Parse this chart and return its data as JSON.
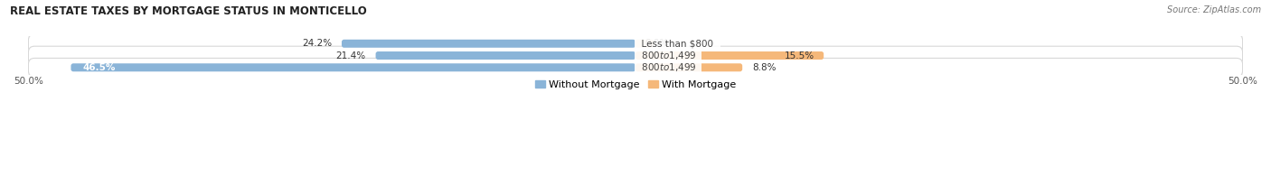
{
  "title": "REAL ESTATE TAXES BY MORTGAGE STATUS IN MONTICELLO",
  "source": "Source: ZipAtlas.com",
  "rows": [
    {
      "label": "Less than $800",
      "without_mortgage": 24.2,
      "with_mortgage": 0.0
    },
    {
      "label": "$800 to $1,499",
      "without_mortgage": 21.4,
      "with_mortgage": 15.5
    },
    {
      "label": "$800 to $1,499",
      "without_mortgage": 46.5,
      "with_mortgage": 8.8
    }
  ],
  "max_val": 50.0,
  "color_without": "#8ab4d8",
  "color_with": "#f5b87a",
  "color_without_light": "#c5d9ee",
  "color_with_light": "#fad9b5",
  "row_bg_color": "#f0f0f0",
  "row_border_color": "#d8d8d8",
  "title_fontsize": 8.5,
  "source_fontsize": 7.0,
  "value_fontsize": 7.5,
  "label_fontsize": 7.5,
  "tick_fontsize": 7.5,
  "legend_fontsize": 8.0,
  "figsize": [
    14.06,
    1.95
  ],
  "dpi": 100
}
